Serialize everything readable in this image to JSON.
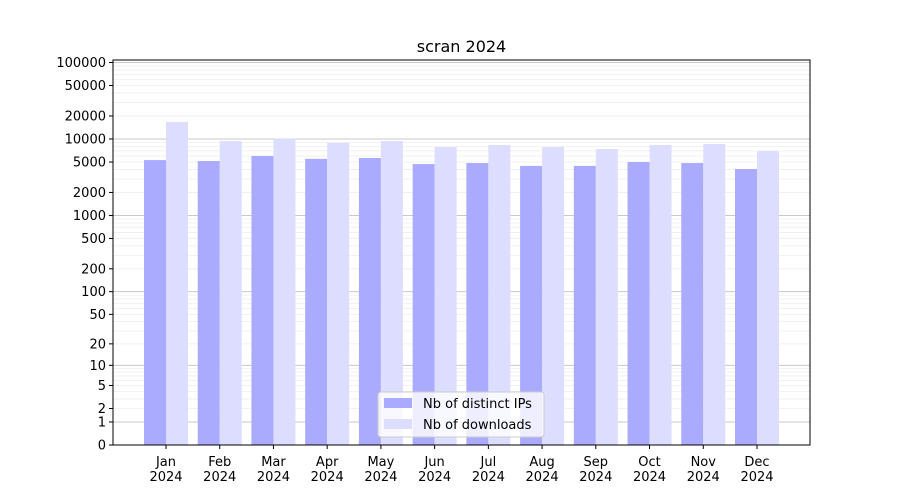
{
  "chart_data": {
    "type": "bar",
    "title": "scran 2024",
    "xlabel": "",
    "ylabel": "",
    "yscale": "log10(1+y)",
    "ylim": [
      0,
      100000
    ],
    "yticks": [
      0,
      1,
      2,
      5,
      10,
      20,
      50,
      100,
      200,
      500,
      1000,
      2000,
      5000,
      10000,
      20000,
      50000,
      100000
    ],
    "grid": true,
    "legend_position": "bottom-center",
    "categories": [
      "Jan\n2024",
      "Feb\n2024",
      "Mar\n2024",
      "Apr\n2024",
      "May\n2024",
      "Jun\n2024",
      "Jul\n2024",
      "Aug\n2024",
      "Sep\n2024",
      "Oct\n2024",
      "Nov\n2024",
      "Dec\n2024"
    ],
    "series": [
      {
        "name": "Nb of distinct IPs",
        "color": "#aaaaff",
        "values": [
          5300,
          5150,
          6000,
          5500,
          5650,
          4700,
          4850,
          4450,
          4450,
          5000,
          4850,
          4050
        ]
      },
      {
        "name": "Nb of downloads",
        "color": "#ddddff",
        "values": [
          16700,
          9400,
          10100,
          8900,
          9400,
          7850,
          8350,
          7850,
          7400,
          8350,
          8600,
          6950
        ]
      }
    ]
  }
}
